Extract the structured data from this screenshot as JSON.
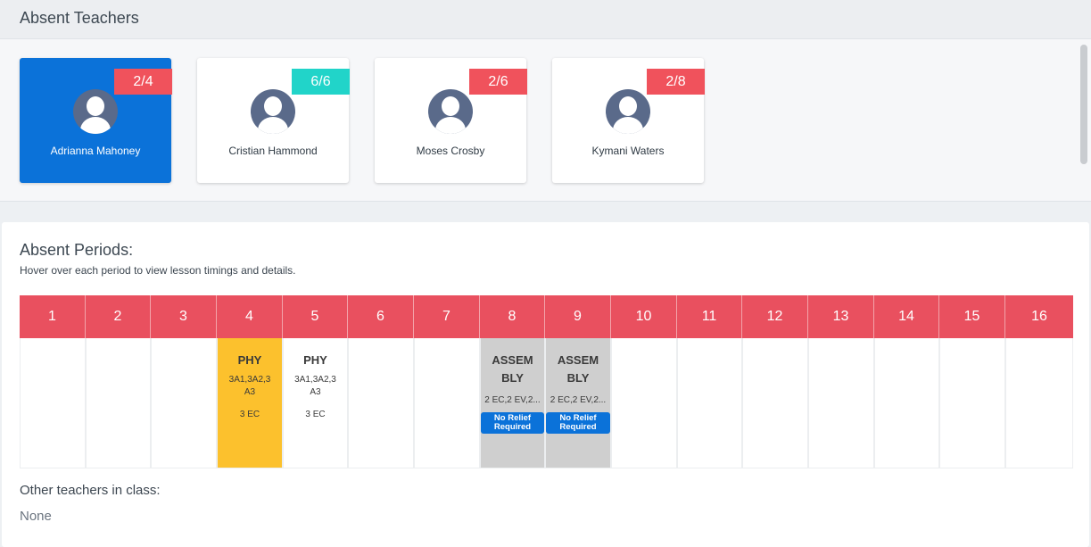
{
  "header": {
    "title": "Absent Teachers"
  },
  "teachers": [
    {
      "name": "Adrianna Mahoney",
      "count": "2/4",
      "badge_color": "#f0525c",
      "selected": true
    },
    {
      "name": "Cristian Hammond",
      "count": "6/6",
      "badge_color": "#21d4c9",
      "selected": false
    },
    {
      "name": "Moses Crosby",
      "count": "2/6",
      "badge_color": "#f0525c",
      "selected": false
    },
    {
      "name": "Kymani Waters",
      "count": "2/8",
      "badge_color": "#f0525c",
      "selected": false
    }
  ],
  "periods": {
    "title": "Absent Periods:",
    "subtitle": "Hover over each period to view lesson timings and details.",
    "headers": [
      "1",
      "2",
      "3",
      "4",
      "5",
      "6",
      "7",
      "8",
      "9",
      "10",
      "11",
      "12",
      "13",
      "14",
      "15",
      "16"
    ],
    "cells": {
      "4": {
        "subject": "PHY",
        "classes": "3A1,3A2,3 A3",
        "venue": "3 EC"
      },
      "5": {
        "subject": "PHY",
        "classes": "3A1,3A2,3 A3",
        "venue": "3 EC"
      },
      "8": {
        "subject": "ASSEM BLY",
        "venue": "2 EC,2 EV,2...",
        "relief": "No Relief Required"
      },
      "9": {
        "subject": "ASSEM BLY",
        "venue": "2 EC,2 EV,2...",
        "relief": "No Relief Required"
      }
    }
  },
  "other_teachers": {
    "title": "Other teachers in class:",
    "value": "None"
  },
  "colors": {
    "accent": "#0b72d9",
    "period_header": "#e9505f",
    "highlight_yellow": "#fcc12d",
    "assembly_grey": "#cfcfcf"
  }
}
